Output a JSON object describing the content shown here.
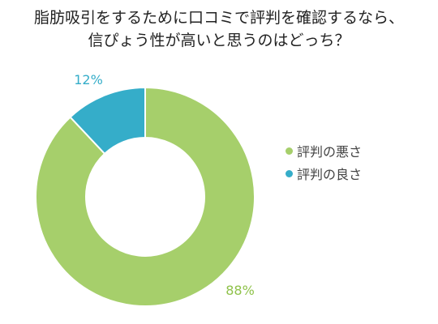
{
  "chart_data": {
    "type": "pie",
    "title_lines": [
      "脂肪吸引をするために口コミで評判を確認するなら、",
      "信ぴょう性が高いと思うのはどっち？"
    ],
    "categories": [
      "評判の悪さ",
      "評判の良さ"
    ],
    "values": [
      88,
      12
    ],
    "data_labels": [
      "88%",
      "12%"
    ],
    "colors": [
      "#a6cf6b",
      "#35adc9"
    ],
    "donut": true,
    "legend": "right"
  }
}
